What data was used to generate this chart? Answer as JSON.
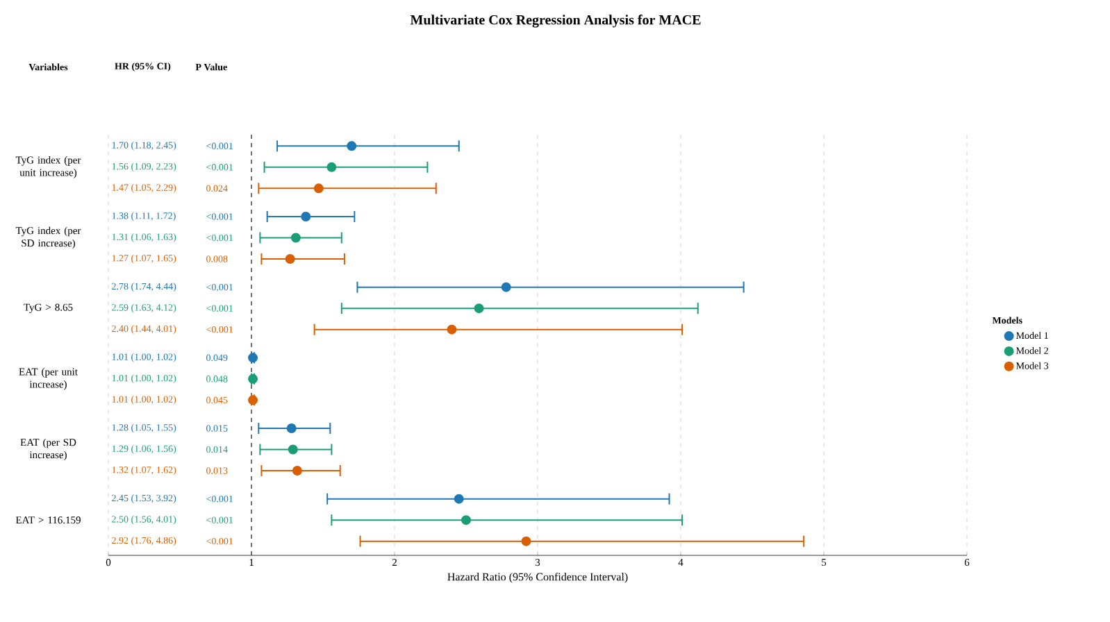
{
  "chart_data": {
    "type": "scatter",
    "orientation": "horizontal",
    "title": "Multivariate Cox Regression Analysis for MACE",
    "xlabel": "Hazard Ratio (95% Confidence Interval)",
    "legend_title": "Models",
    "categories": [
      "TyG index (per unit increase)",
      "TyG index (per SD increase)",
      "TyG > 8.65",
      "EAT (per unit increase)",
      "EAT (per SD increase)",
      "EAT > 116.159"
    ],
    "series": [
      {
        "name": "Model 1",
        "color": "#1f77b4",
        "values": [
          1.7,
          1.38,
          2.78,
          1.01,
          1.28,
          2.45
        ],
        "errors": [
          [
            1.18,
            2.45
          ],
          [
            1.11,
            1.72
          ],
          [
            1.74,
            4.44
          ],
          [
            1.0,
            1.02
          ],
          [
            1.05,
            1.55
          ],
          [
            1.53,
            3.92
          ]
        ]
      },
      {
        "name": "Model 2",
        "color": "#1b9e77",
        "values": [
          1.56,
          1.31,
          2.59,
          1.01,
          1.29,
          2.5
        ],
        "errors": [
          [
            1.09,
            2.23
          ],
          [
            1.06,
            1.63
          ],
          [
            1.63,
            4.12
          ],
          [
            1.0,
            1.02
          ],
          [
            1.06,
            1.56
          ],
          [
            1.56,
            4.01
          ]
        ]
      },
      {
        "name": "Model 3",
        "color": "#d95f02",
        "values": [
          1.47,
          1.27,
          2.4,
          1.01,
          1.32,
          2.92
        ],
        "errors": [
          [
            1.05,
            2.29
          ],
          [
            1.07,
            1.65
          ],
          [
            1.44,
            4.01
          ],
          [
            1.0,
            1.02
          ],
          [
            1.07,
            1.62
          ],
          [
            1.76,
            4.86
          ]
        ]
      }
    ],
    "annotations": [
      "Variables",
      "HR (95% CI)",
      "P Value",
      "1.70 (1.18, 2.45)",
      "<0.001",
      "1.56 (1.09, 2.23)",
      "<0.001",
      "1.47 (1.05, 2.29)",
      "0.024",
      "1.38 (1.11, 1.72)",
      "<0.001",
      "1.31 (1.06, 1.63)",
      "<0.001",
      "1.27 (1.07, 1.65)",
      "0.008",
      "2.78 (1.74, 4.44)",
      "<0.001",
      "2.59 (1.63, 4.12)",
      "<0.001",
      "2.40 (1.44, 4.01)",
      "<0.001",
      "1.01 (1.00, 1.02)",
      "0.049",
      "1.01 (1.00, 1.02)",
      "0.048",
      "1.01 (1.00, 1.02)",
      "0.045",
      "1.28 (1.05, 1.55)",
      "0.015",
      "1.29 (1.06, 1.56)",
      "0.014",
      "1.32 (1.07, 1.62)",
      "0.013",
      "2.45 (1.53, 3.92)",
      "<0.001",
      "2.50 (1.56, 4.01)",
      "<0.001",
      "2.92 (1.76, 4.86)",
      "<0.001"
    ],
    "xlim": [
      0,
      6
    ],
    "xticks": [
      0,
      1,
      2,
      3,
      4,
      5,
      6
    ],
    "ref_lines": [
      {
        "axis": "x",
        "value": 1,
        "color": "#555555",
        "line_style": "dashed"
      }
    ],
    "grid": "x",
    "legend": "right"
  }
}
